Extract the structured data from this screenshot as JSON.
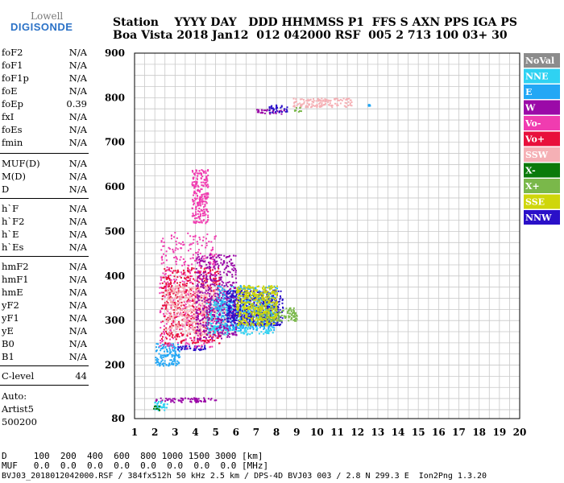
{
  "logo": {
    "top": "Lowell",
    "bottom": "DIGISONDE"
  },
  "header": {
    "row1": "Station    YYYY DAY   DDD HHMMSS P1  FFS S AXN PPS IGA PS",
    "row2": "Boa Vista 2018 Jan12  012 042000 RSF  005 2 713 100 03+ 30"
  },
  "params_a": [
    {
      "name": "foF2",
      "value": "N/A"
    },
    {
      "name": "foF1",
      "value": "N/A"
    },
    {
      "name": "foF1p",
      "value": "N/A"
    },
    {
      "name": "foE",
      "value": "N/A"
    },
    {
      "name": "foEp",
      "value": "0.39"
    },
    {
      "name": "fxI",
      "value": "N/A"
    },
    {
      "name": "foEs",
      "value": "N/A"
    },
    {
      "name": "fmin",
      "value": "N/A"
    }
  ],
  "params_b": [
    {
      "name": "MUF(D)",
      "value": "N/A"
    },
    {
      "name": "M(D)",
      "value": "N/A"
    },
    {
      "name": "D",
      "value": "N/A"
    }
  ],
  "params_c": [
    {
      "name": "h`F",
      "value": "N/A"
    },
    {
      "name": "h`F2",
      "value": "N/A"
    },
    {
      "name": "h`E",
      "value": "N/A"
    },
    {
      "name": "h`Es",
      "value": "N/A"
    }
  ],
  "params_d": [
    {
      "name": "hmF2",
      "value": "N/A"
    },
    {
      "name": "hmF1",
      "value": "N/A"
    },
    {
      "name": "hmE",
      "value": "N/A"
    },
    {
      "name": "yF2",
      "value": "N/A"
    },
    {
      "name": "yF1",
      "value": "N/A"
    },
    {
      "name": "yE",
      "value": "N/A"
    },
    {
      "name": "B0",
      "value": "N/A"
    },
    {
      "name": "B1",
      "value": "N/A"
    }
  ],
  "clevel": {
    "name": "C-level",
    "value": "44"
  },
  "auto": [
    "Auto:",
    "Artist5",
    "500200"
  ],
  "footer": {
    "line1": "D     100  200  400  600  800 1000 1500 3000 [km]",
    "line2": "MUF   0.0  0.0  0.0  0.0  0.0  0.0  0.0  0.0 [MHz]",
    "line3": "BVJ03_2018012042000.RSF / 384fx512h 50 kHz 2.5 km / DPS-4D BVJ03 003 / 2.8 N 299.3 E  Ion2Png 1.3.20"
  },
  "chart_data": {
    "type": "scatter",
    "title": "",
    "xlabel": "",
    "ylabel": "",
    "xlim": [
      1,
      20
    ],
    "ylim": [
      80,
      900
    ],
    "x_ticks": [
      1,
      2,
      3,
      4,
      5,
      6,
      7,
      8,
      9,
      10,
      11,
      12,
      13,
      14,
      15,
      16,
      17,
      18,
      19,
      20
    ],
    "y_ticks": [
      80,
      200,
      300,
      400,
      500,
      600,
      700,
      800,
      900
    ],
    "grid": true,
    "legend_placement": "right",
    "legend": [
      {
        "name": "NoVal",
        "color": "#8c8c8c"
      },
      {
        "name": "NNE",
        "color": "#2fd2f2"
      },
      {
        "name": "E",
        "color": "#23a7f5"
      },
      {
        "name": "W",
        "color": "#9b0aa8"
      },
      {
        "name": "Vo-",
        "color": "#f03cb0"
      },
      {
        "name": "Vo+",
        "color": "#e8103c"
      },
      {
        "name": "SSW",
        "color": "#f5b0b5"
      },
      {
        "name": "X-",
        "color": "#0a7a0a"
      },
      {
        "name": "X+",
        "color": "#7ab84a"
      },
      {
        "name": "SSE",
        "color": "#cfd60a"
      },
      {
        "name": "NNW",
        "color": "#2a10c8"
      }
    ],
    "clusters": [
      {
        "series": "W",
        "x": [
          2.0,
          5.0
        ],
        "y": [
          118,
          128
        ]
      },
      {
        "series": "NNE",
        "x": [
          1.9,
          2.6
        ],
        "y": [
          100,
          120
        ]
      },
      {
        "series": "X-",
        "x": [
          1.9,
          2.2
        ],
        "y": [
          100,
          110
        ]
      },
      {
        "series": "E",
        "x": [
          2.0,
          3.2
        ],
        "y": [
          200,
          250
        ]
      },
      {
        "series": "NNW",
        "x": [
          3.0,
          4.6
        ],
        "y": [
          235,
          245
        ]
      },
      {
        "series": "Vo-",
        "x": [
          2.2,
          5.0
        ],
        "y": [
          240,
          500
        ]
      },
      {
        "series": "Vo+",
        "x": [
          2.3,
          5.2
        ],
        "y": [
          250,
          420
        ]
      },
      {
        "series": "SSW",
        "x": [
          2.5,
          5.5
        ],
        "y": [
          270,
          380
        ]
      },
      {
        "series": "NNE",
        "x": [
          4.5,
          7.8
        ],
        "y": [
          270,
          350
        ]
      },
      {
        "series": "E",
        "x": [
          5.0,
          8.0
        ],
        "y": [
          280,
          380
        ]
      },
      {
        "series": "W",
        "x": [
          4.0,
          6.0
        ],
        "y": [
          260,
          450
        ]
      },
      {
        "series": "NNW",
        "x": [
          5.5,
          8.3
        ],
        "y": [
          290,
          370
        ]
      },
      {
        "series": "X+",
        "x": [
          7.0,
          9.0
        ],
        "y": [
          300,
          330
        ]
      },
      {
        "series": "SSE",
        "x": [
          6.0,
          8.0
        ],
        "y": [
          290,
          380
        ]
      },
      {
        "series": "Vo-",
        "x": [
          3.8,
          4.6
        ],
        "y": [
          520,
          640
        ]
      },
      {
        "series": "W",
        "x": [
          7.0,
          8.5
        ],
        "y": [
          765,
          775
        ]
      },
      {
        "series": "NNW",
        "x": [
          7.6,
          8.5
        ],
        "y": [
          768,
          785
        ]
      },
      {
        "series": "SSW",
        "x": [
          8.8,
          11.7
        ],
        "y": [
          780,
          800
        ]
      },
      {
        "series": "X+",
        "x": [
          8.8,
          9.2
        ],
        "y": [
          770,
          780
        ]
      },
      {
        "series": "E",
        "x": [
          12.5,
          12.6
        ],
        "y": [
          783,
          787
        ]
      }
    ]
  }
}
